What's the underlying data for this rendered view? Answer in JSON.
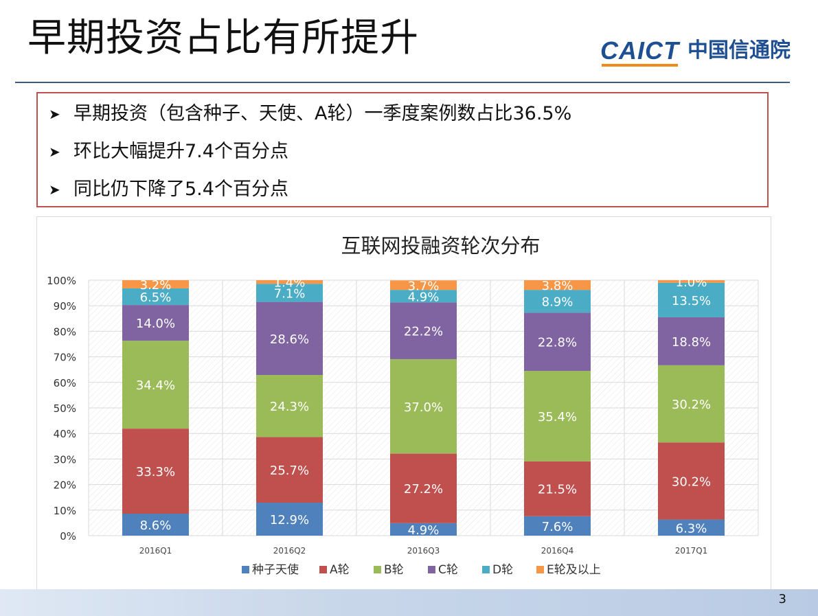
{
  "slide": {
    "title": "早期投资占比有所提升",
    "logo_en": "CAICT",
    "logo_cn": "中国信通院",
    "page_number": "3"
  },
  "bullets": [
    "早期投资（包含种子、天使、A轮）一季度案例数占比36.5%",
    "环比大幅提升7.4个百分点",
    "同比仍下降了5.4个百分点"
  ],
  "colors": {
    "accent_border": "#c0504d",
    "title_rule": "#3b5a82",
    "logo_blue": "#1e4f93",
    "logo_orange": "#f08a1d"
  },
  "chart_data": {
    "type": "bar",
    "stacked": true,
    "percent_stacked": true,
    "title": "互联网投融资轮次分布",
    "categories": [
      "2016Q1",
      "2016Q2",
      "2016Q3",
      "2016Q4",
      "2017Q1"
    ],
    "ylim": [
      0,
      100
    ],
    "y_ticks": [
      "0%",
      "10%",
      "20%",
      "30%",
      "40%",
      "50%",
      "60%",
      "70%",
      "80%",
      "90%",
      "100%"
    ],
    "grid": true,
    "legend_position": "bottom",
    "series": [
      {
        "name": "种子天使",
        "color": "#4f81bd",
        "values": [
          8.6,
          12.9,
          4.9,
          7.6,
          6.3
        ],
        "labels": [
          "8.6%",
          "12.9%",
          "4.9%",
          "7.6%",
          "6.3%"
        ]
      },
      {
        "name": "A轮",
        "color": "#c0504d",
        "values": [
          33.3,
          25.7,
          27.2,
          21.5,
          30.2
        ],
        "labels": [
          "33.3%",
          "25.7%",
          "27.2%",
          "21.5%",
          "30.2%"
        ]
      },
      {
        "name": "B轮",
        "color": "#9bbb59",
        "values": [
          34.4,
          24.3,
          37.0,
          35.4,
          30.2
        ],
        "labels": [
          "34.4%",
          "24.3%",
          "37.0%",
          "35.4%",
          "30.2%"
        ]
      },
      {
        "name": "C轮",
        "color": "#8064a2",
        "values": [
          14.0,
          28.6,
          22.2,
          22.8,
          18.8
        ],
        "labels": [
          "14.0%",
          "28.6%",
          "22.2%",
          "22.8%",
          "18.8%"
        ]
      },
      {
        "name": "D轮",
        "color": "#4bacc6",
        "values": [
          6.5,
          7.1,
          4.9,
          8.9,
          13.5
        ],
        "labels": [
          "6.5%",
          "7.1%",
          "4.9%",
          "8.9%",
          "13.5%"
        ]
      },
      {
        "name": "E轮及以上",
        "color": "#f79646",
        "values": [
          3.2,
          1.4,
          3.7,
          3.8,
          1.0
        ],
        "labels": [
          "3.2%",
          "1.4%",
          "3.7%",
          "3.8%",
          "1.0%"
        ]
      }
    ]
  }
}
